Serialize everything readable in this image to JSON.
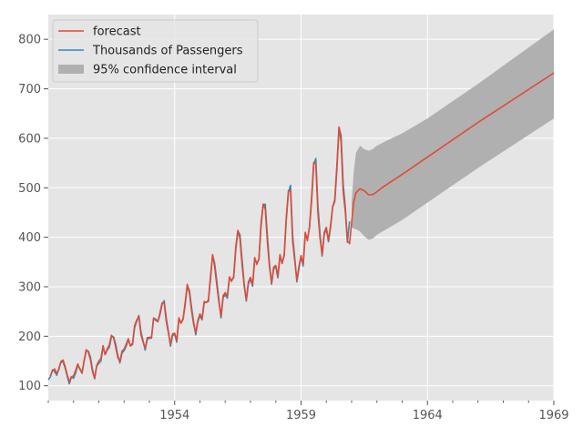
{
  "chart_data": {
    "type": "line",
    "title": "",
    "xlabel": "",
    "ylabel": "",
    "xlim": [
      1949.0,
      1969.0
    ],
    "ylim": [
      70,
      850
    ],
    "grid": true,
    "legend_position": "top-left",
    "x_ticks": [
      {
        "value": 1954,
        "label": "1954"
      },
      {
        "value": 1959,
        "label": "1959"
      },
      {
        "value": 1964,
        "label": "1964"
      },
      {
        "value": 1969,
        "label": "1969"
      }
    ],
    "y_ticks": [
      {
        "value": 100,
        "label": "100"
      },
      {
        "value": 200,
        "label": "200"
      },
      {
        "value": 300,
        "label": "300"
      },
      {
        "value": 400,
        "label": "400"
      },
      {
        "value": 500,
        "label": "500"
      },
      {
        "value": 600,
        "label": "600"
      },
      {
        "value": 700,
        "label": "700"
      },
      {
        "value": 800,
        "label": "800"
      }
    ],
    "passengers": {
      "name": "Thousands of Passengers",
      "color": "#348abd",
      "start": [
        1949,
        1
      ],
      "values": [
        112,
        118,
        132,
        129,
        121,
        135,
        148,
        148,
        136,
        119,
        104,
        118,
        115,
        126,
        141,
        135,
        125,
        149,
        170,
        170,
        158,
        133,
        114,
        140,
        145,
        150,
        178,
        163,
        172,
        178,
        199,
        199,
        184,
        162,
        146,
        166,
        171,
        180,
        193,
        181,
        183,
        218,
        230,
        242,
        209,
        191,
        172,
        194,
        196,
        196,
        236,
        235,
        229,
        243,
        264,
        272,
        237,
        211,
        180,
        201,
        204,
        188,
        235,
        227,
        234,
        264,
        302,
        293,
        259,
        229,
        203,
        229,
        242,
        233,
        267,
        269,
        270,
        315,
        364,
        347,
        312,
        274,
        237,
        278,
        284,
        277,
        317,
        313,
        318,
        374,
        413,
        405,
        355,
        306,
        271,
        306,
        315,
        301,
        356,
        348,
        355,
        422,
        465,
        467,
        404,
        347,
        305,
        336,
        340,
        318,
        362,
        348,
        363,
        435,
        491,
        505,
        404,
        359,
        310,
        337,
        360,
        342,
        406,
        396,
        420,
        472,
        548,
        559,
        463,
        407,
        362,
        405,
        417,
        391,
        419,
        461,
        472,
        535,
        622,
        606,
        508,
        461,
        390,
        432
      ]
    },
    "forecast": {
      "name": "forecast",
      "color": "#e24a33",
      "in_sample_start": [
        1949,
        2
      ],
      "in_sample": [
        120,
        130,
        134,
        125,
        132,
        149,
        152,
        139,
        122,
        108,
        118,
        120,
        131,
        144,
        133,
        126,
        151,
        173,
        168,
        153,
        128,
        116,
        141,
        150,
        155,
        181,
        163,
        174,
        183,
        202,
        197,
        178,
        157,
        149,
        170,
        174,
        184,
        195,
        180,
        186,
        222,
        233,
        240,
        203,
        188,
        176,
        197,
        198,
        198,
        237,
        232,
        230,
        247,
        267,
        268,
        230,
        207,
        184,
        205,
        206,
        192,
        237,
        226,
        236,
        269,
        305,
        287,
        252,
        224,
        207,
        232,
        245,
        236,
        270,
        268,
        273,
        321,
        365,
        340,
        303,
        268,
        241,
        282,
        288,
        281,
        320,
        311,
        321,
        380,
        414,
        397,
        344,
        301,
        274,
        310,
        319,
        305,
        359,
        345,
        357,
        429,
        467,
        457,
        391,
        340,
        308,
        340,
        343,
        322,
        365,
        347,
        365,
        442,
        494,
        494,
        392,
        352,
        314,
        341,
        363,
        346,
        410,
        393,
        421,
        481,
        551,
        548,
        449,
        398,
        365,
        410,
        420,
        394,
        424,
        462,
        476,
        545,
        623,
        592,
        491,
        452,
        393,
        387
      ],
      "future": [
        {
          "x": 1961.08,
          "y": 470
        },
        {
          "x": 1961.17,
          "y": 490
        },
        {
          "x": 1961.33,
          "y": 498
        },
        {
          "x": 1961.5,
          "y": 494
        },
        {
          "x": 1961.67,
          "y": 486
        },
        {
          "x": 1961.83,
          "y": 486
        },
        {
          "x": 1962.0,
          "y": 492
        },
        {
          "x": 1962.25,
          "y": 502
        },
        {
          "x": 1963.0,
          "y": 527
        },
        {
          "x": 1964.0,
          "y": 562
        },
        {
          "x": 1966.0,
          "y": 632
        },
        {
          "x": 1969.0,
          "y": 732
        }
      ]
    },
    "confidence_interval": {
      "name": "95% confidence interval",
      "color": "#b0b0b0",
      "points": [
        {
          "x": 1961.0,
          "lower": 420,
          "upper": 470
        },
        {
          "x": 1961.08,
          "lower": 418,
          "upper": 530
        },
        {
          "x": 1961.17,
          "lower": 416,
          "upper": 570
        },
        {
          "x": 1961.33,
          "lower": 412,
          "upper": 585
        },
        {
          "x": 1961.5,
          "lower": 402,
          "upper": 578
        },
        {
          "x": 1961.67,
          "lower": 395,
          "upper": 575
        },
        {
          "x": 1961.83,
          "lower": 397,
          "upper": 578
        },
        {
          "x": 1962.0,
          "lower": 405,
          "upper": 585
        },
        {
          "x": 1962.5,
          "lower": 420,
          "upper": 598
        },
        {
          "x": 1963.0,
          "lower": 435,
          "upper": 610
        },
        {
          "x": 1964.0,
          "lower": 470,
          "upper": 640
        },
        {
          "x": 1966.0,
          "lower": 540,
          "upper": 710
        },
        {
          "x": 1969.0,
          "lower": 640,
          "upper": 820
        }
      ]
    },
    "legend": [
      {
        "label": "forecast",
        "kind": "line",
        "color": "#e24a33"
      },
      {
        "label": "Thousands of Passengers",
        "kind": "line",
        "color": "#348abd"
      },
      {
        "label": "95% confidence interval",
        "kind": "patch",
        "color": "#b0b0b0"
      }
    ]
  }
}
